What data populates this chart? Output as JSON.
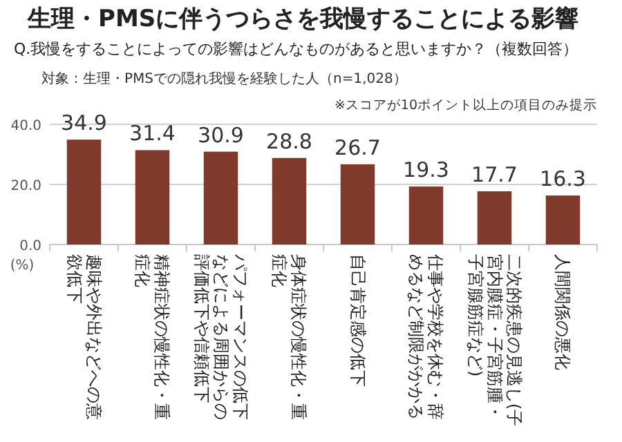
{
  "chart_data": {
    "type": "bar",
    "title": "生理・PMSに伴うつらさを我慢することによる影響",
    "subtitle": "Q.我慢をすることによっての影響はどんなものがあると思いますか？（複数回答）",
    "annotations": [
      "対象：生理・PMSでの隠れ我慢を経験した人（n=1,028）",
      "※スコアが10ポイント以上の項目のみ提示"
    ],
    "ylabel": "(%)",
    "categories": [
      "趣味や外出などへの意欲低下",
      "精神症状の慢性化・重症化",
      "パフォーマンスの低下などによる周囲からの評価低下や信頼低下",
      "身体症状の慢性化・重症化",
      "自己肯定感の低下",
      "仕事や学校を休む・辞めるなど制限がかかる",
      "二次的疾患の見逃し(子宮内膜症・子宮筋腫・子宮腺筋症など)",
      "人間関係の悪化"
    ],
    "values": [
      34.9,
      31.4,
      30.9,
      28.8,
      26.7,
      19.3,
      17.7,
      16.3
    ],
    "color": "#7f3a2c",
    "ylim": [
      0,
      40
    ],
    "yticks": [
      {
        "value": 0,
        "label": "0.0"
      },
      {
        "value": 20,
        "label": "20.0"
      },
      {
        "value": 40,
        "label": "40.0"
      }
    ],
    "grid": "y",
    "data_labels": true
  }
}
